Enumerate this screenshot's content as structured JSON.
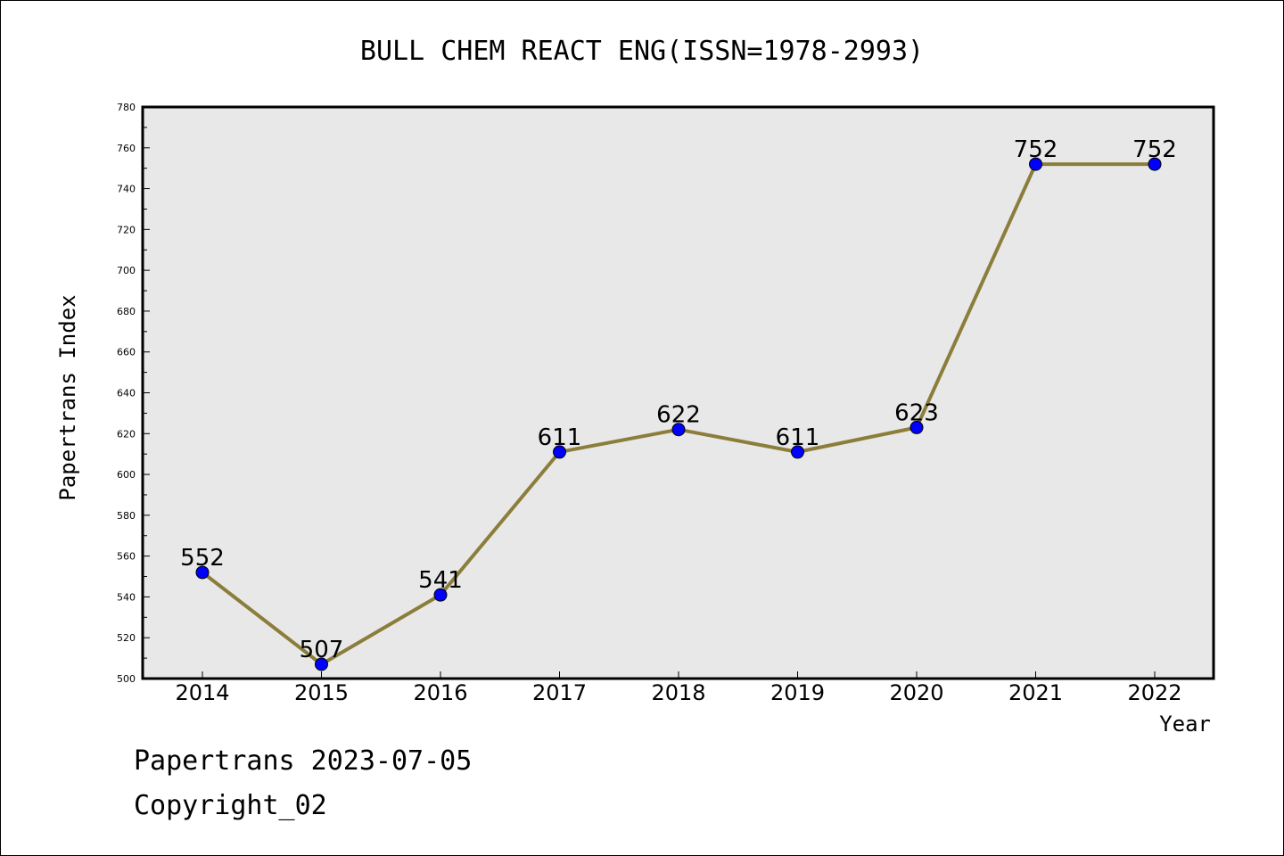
{
  "chart_data": {
    "type": "line",
    "title": "BULL CHEM REACT ENG(ISSN=1978-2993)",
    "xlabel": "Year",
    "ylabel": "Papertrans Index",
    "categories": [
      "2014",
      "2015",
      "2016",
      "2017",
      "2018",
      "2019",
      "2020",
      "2021",
      "2022"
    ],
    "series": [
      {
        "values": [
          552,
          507,
          541,
          611,
          622,
          611,
          623,
          752,
          752
        ]
      }
    ],
    "ylim": [
      500,
      780
    ],
    "yticks": [
      "500",
      "520",
      "540",
      "560",
      "580",
      "600",
      "620",
      "640",
      "660",
      "680",
      "700",
      "720",
      "740",
      "760",
      "780"
    ],
    "grid": false,
    "legend": "none",
    "colors": {
      "line": "#8b7d3a",
      "marker": "#0000ff",
      "plot_bg": "#e8e8e8"
    }
  },
  "footer": {
    "line1": "Papertrans 2023-07-05",
    "line2": "Copyright_02"
  }
}
